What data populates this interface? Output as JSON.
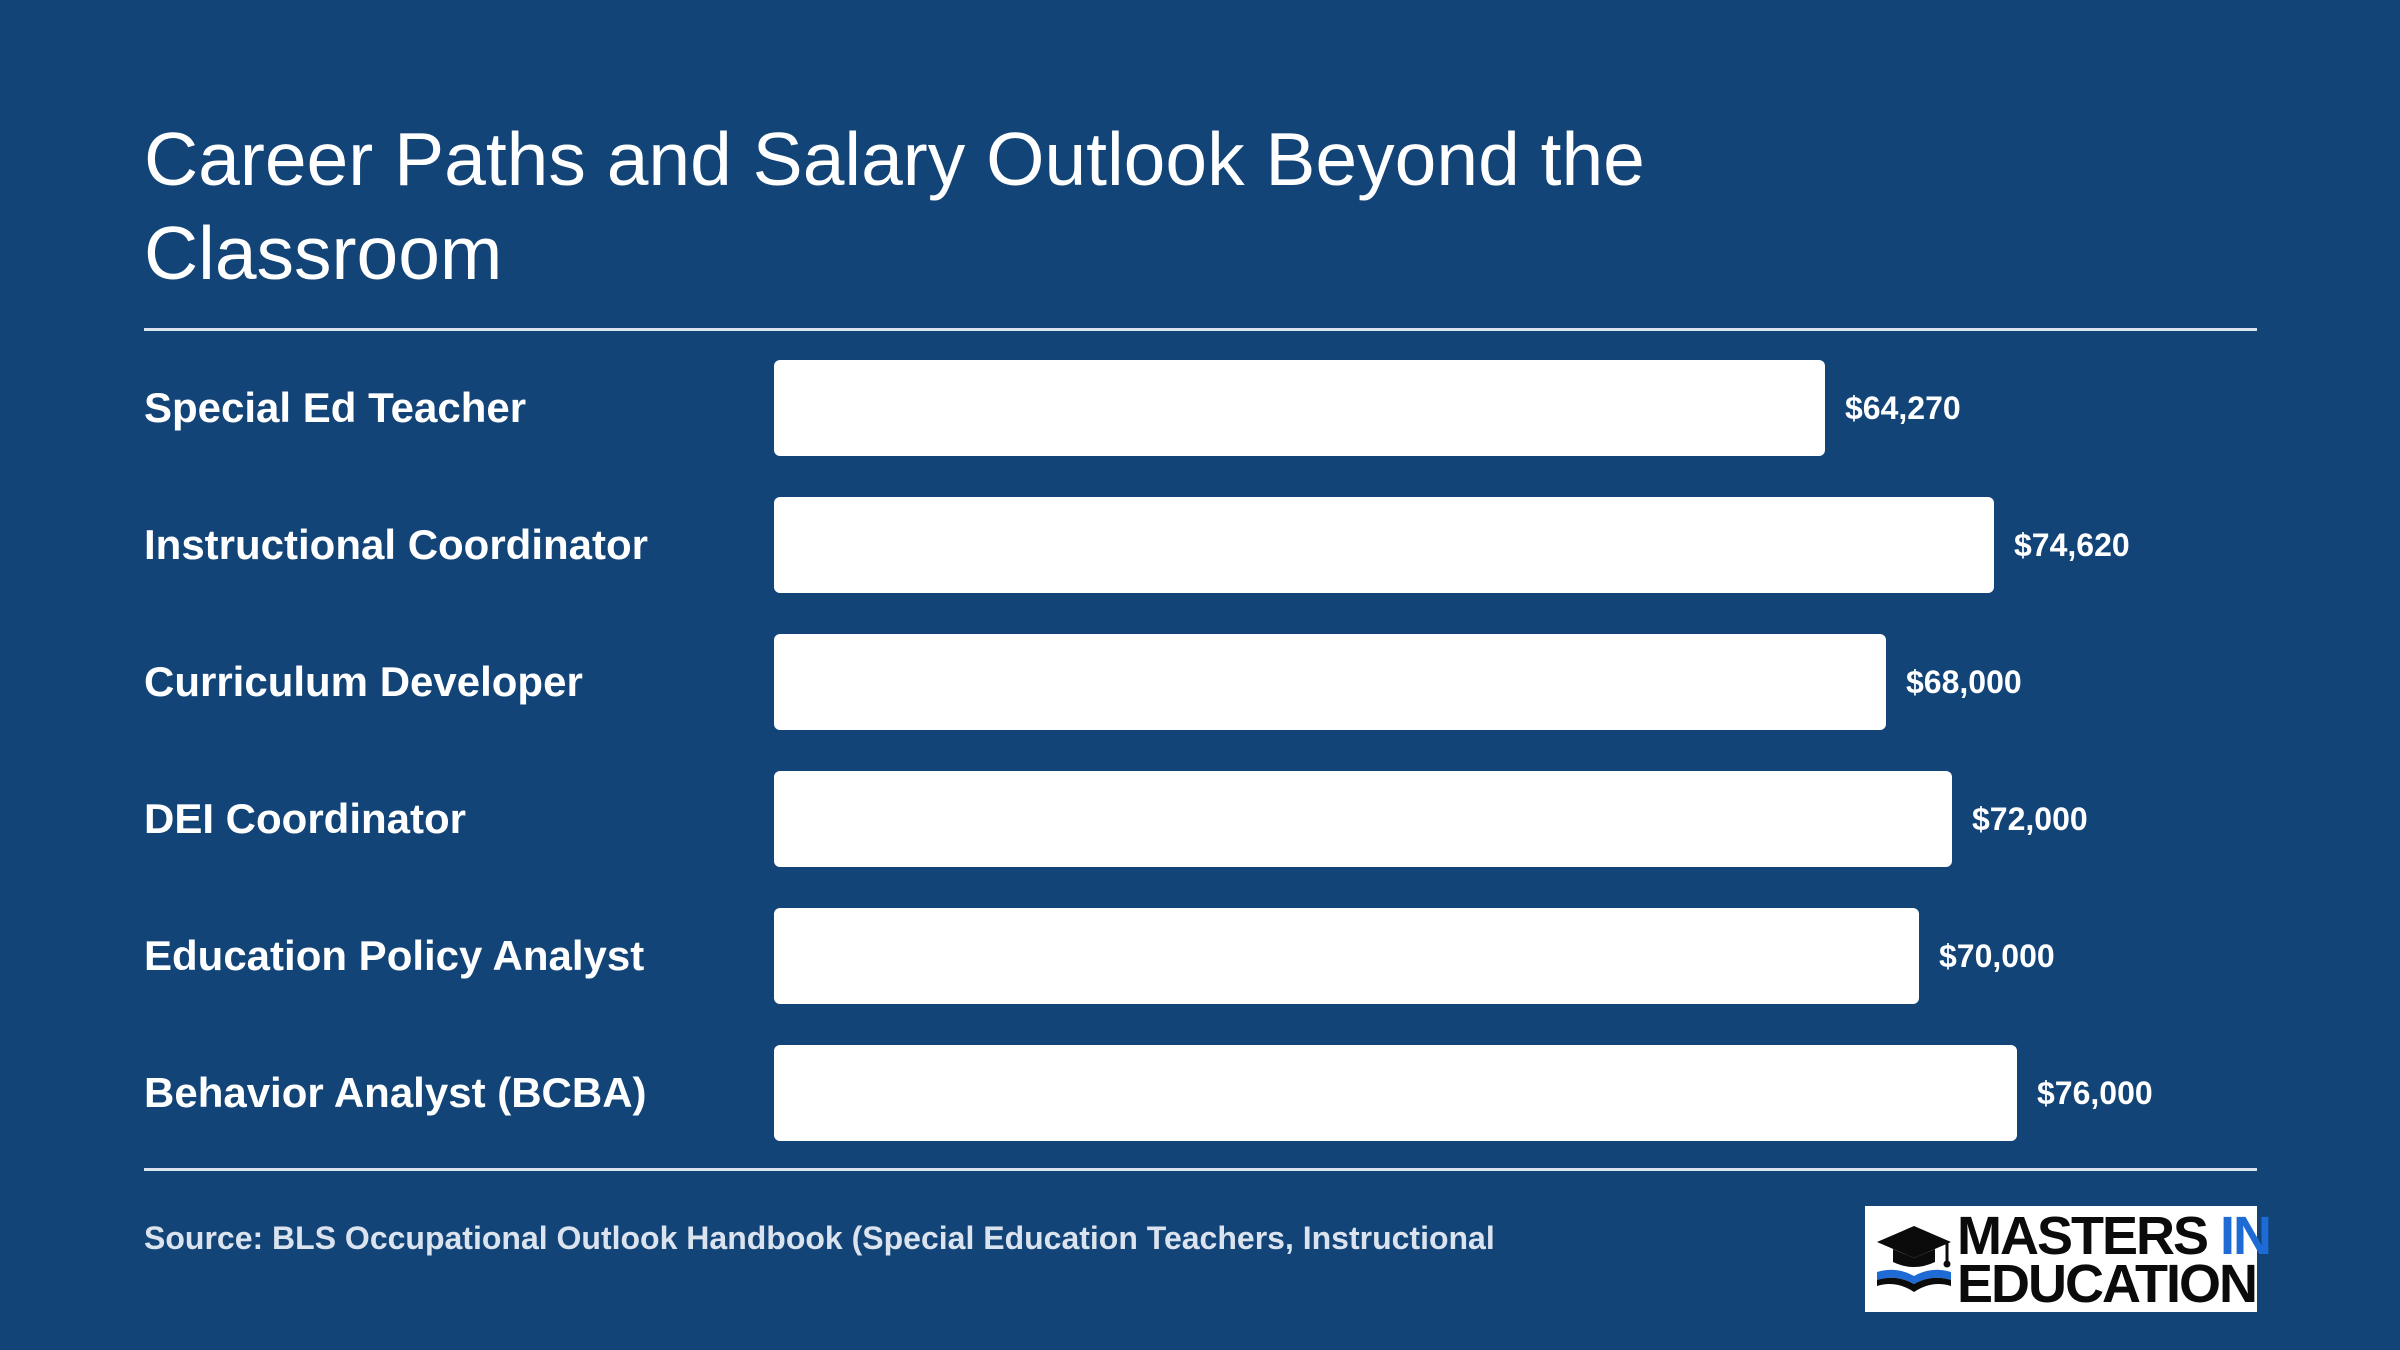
{
  "title": "Career Paths and Salary Outlook Beyond the Classroom",
  "source": "Source: BLS Occupational Outlook Handbook (Special Education Teachers, Instructional",
  "logo": {
    "line1_a": "MASTERS",
    "line1_b": "IN",
    "line2": "EDUCATION",
    "icon": "graduation-cap-book-icon"
  },
  "colors": {
    "background": "#124478",
    "bar": "#ffffff",
    "text": "#ffffff",
    "logo_accent": "#1f6bd6"
  },
  "chart_data": {
    "type": "bar",
    "orientation": "horizontal",
    "title": "Career Paths and Salary Outlook Beyond the Classroom",
    "categories": [
      "Special Ed Teacher",
      "Instructional Coordinator",
      "Curriculum Developer",
      "DEI Coordinator",
      "Education Policy Analyst",
      "Behavior Analyst (BCBA)"
    ],
    "values": [
      64270,
      74620,
      68000,
      72000,
      70000,
      76000
    ],
    "value_labels": [
      "$64,270",
      "$74,620",
      "$68,000",
      "$72,000",
      "$70,000",
      "$76,000"
    ],
    "xlim": [
      0,
      76000
    ],
    "xlabel": "",
    "ylabel": "",
    "grid": false,
    "legend": "none"
  }
}
